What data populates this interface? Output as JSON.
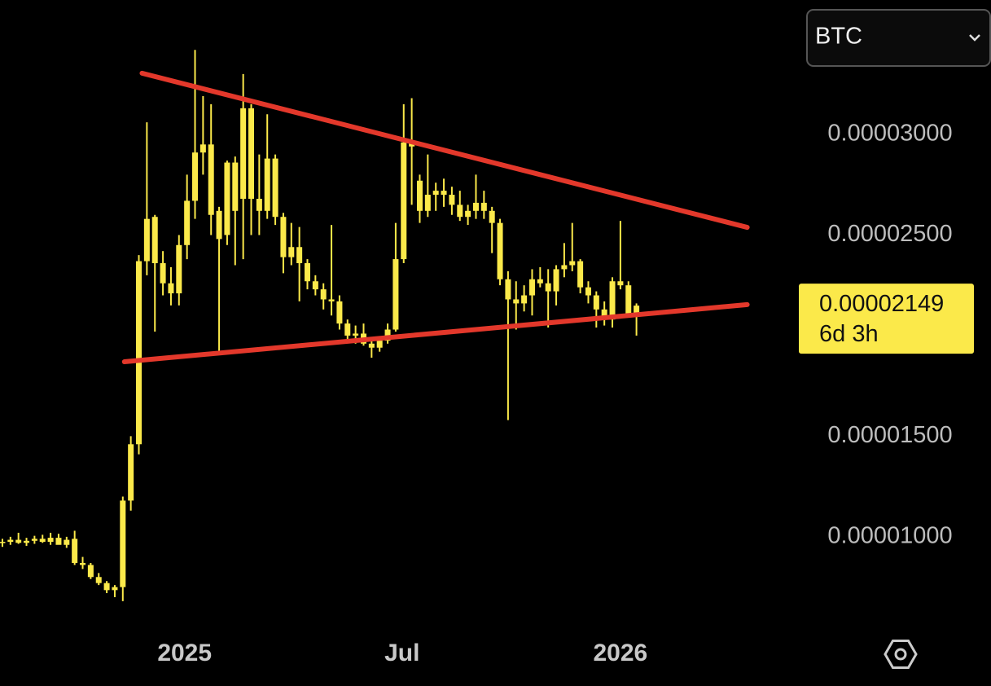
{
  "chart_data": {
    "type": "candlestick",
    "symbol": "BTC",
    "x": [
      0,
      1,
      2,
      3,
      4,
      5,
      6,
      7,
      8,
      9,
      10,
      11,
      12,
      13,
      14,
      15,
      16,
      17,
      18,
      19,
      20,
      21,
      22,
      23,
      24,
      25,
      26,
      27,
      28,
      29,
      30,
      31,
      32,
      33,
      34,
      35,
      36,
      37,
      38,
      39,
      40,
      41,
      42,
      43,
      44,
      45,
      46,
      47,
      48,
      49,
      50,
      51,
      52,
      53,
      54,
      55,
      56,
      57,
      58,
      59,
      60,
      61,
      62,
      63,
      64,
      65,
      66,
      67,
      68,
      69,
      70,
      71,
      72,
      73,
      74,
      75,
      76,
      77,
      78,
      79
    ],
    "open": [
      9.7e-06,
      9.75e-06,
      9.85e-06,
      9.7e-06,
      9.8e-06,
      9.9e-06,
      9.75e-06,
      9.95e-06,
      9.6e-06,
      9.9e-06,
      8.7e-06,
      8.6e-06,
      8e-06,
      7.7e-06,
      7.35e-06,
      7.5e-06,
      1.18e-05,
      1.46e-05,
      2.37e-05,
      2.59e-05,
      2.36e-05,
      2.26e-05,
      2.21e-05,
      2.45e-05,
      2.67e-05,
      2.91e-05,
      2.95e-05,
      2.62e-05,
      2.5e-05,
      2.86e-05,
      2.68e-05,
      3.13e-05,
      2.68e-05,
      2.62e-05,
      2.88e-05,
      2.59e-05,
      2.39e-05,
      2.44e-05,
      2.36e-05,
      2.27e-05,
      2.23e-05,
      2.18e-05,
      2.17e-05,
      2.06e-05,
      2e-05,
      2.01e-05,
      1.96e-05,
      1.94e-05,
      1.975e-05,
      2.03e-05,
      2.38e-05,
      2.96e-05,
      2.77e-05,
      2.62e-05,
      2.7e-05,
      2.72e-05,
      2.7e-05,
      2.65e-05,
      2.59e-05,
      2.62e-05,
      2.66e-05,
      2.62e-05,
      2.56e-05,
      2.28e-05,
      2.18e-05,
      2.16e-05,
      2.2e-05,
      2.28e-05,
      2.26e-05,
      2.22e-05,
      2.33e-05,
      2.35e-05,
      2.37e-05,
      2.24e-05,
      2.2e-05,
      2.13e-05,
      2.08e-05,
      2.27e-05,
      2.25e-05,
      2.11e-05
    ],
    "high": [
      9.9e-06,
      1e-05,
      1.02e-05,
      9.95e-06,
      1.005e-05,
      1.01e-05,
      1.02e-05,
      1.015e-05,
      1e-05,
      1.03e-05,
      9e-06,
      8.7e-06,
      8.2e-06,
      7.8e-06,
      7.6e-06,
      1.2e-05,
      1.5e-05,
      2.4e-05,
      3.06e-05,
      2.6e-05,
      2.42e-05,
      2.34e-05,
      2.5e-05,
      2.8e-05,
      3.42e-05,
      3.19e-05,
      3.15e-05,
      2.64e-05,
      2.87e-05,
      2.89e-05,
      3.3e-05,
      3.15e-05,
      2.9e-05,
      3.1e-05,
      2.9e-05,
      2.61e-05,
      2.56e-05,
      2.54e-05,
      2.38e-05,
      2.3e-05,
      2.26e-05,
      2.55e-05,
      2.2e-05,
      2.08e-05,
      2.05e-05,
      2.06e-05,
      1.98e-05,
      1.99e-05,
      2.06e-05,
      2.56e-05,
      3.15e-05,
      3.18e-05,
      2.8e-05,
      2.9e-05,
      2.76e-05,
      2.78e-05,
      2.74e-05,
      2.72e-05,
      2.65e-05,
      2.8e-05,
      2.72e-05,
      2.64e-05,
      2.58e-05,
      2.32e-05,
      2.27e-05,
      2.25e-05,
      2.33e-05,
      2.34e-05,
      2.33e-05,
      2.35e-05,
      2.46e-05,
      2.56e-05,
      2.38e-05,
      2.27e-05,
      2.22e-05,
      2.17e-05,
      2.29e-05,
      2.57e-05,
      2.27e-05,
      2.16e-05
    ],
    "low": [
      9.5e-06,
      9.6e-06,
      9.65e-06,
      9.55e-06,
      9.65e-06,
      9.7e-06,
      9.6e-06,
      9.65e-06,
      9.45e-06,
      8.6e-06,
      8.4e-06,
      7.9e-06,
      7.6e-06,
      7.2e-06,
      7e-06,
      6.8e-06,
      1.13e-05,
      1.41e-05,
      2.3e-05,
      2.02e-05,
      2.2e-05,
      2.15e-05,
      2.15e-05,
      2.38e-05,
      2.58e-05,
      2.8e-05,
      2.5e-05,
      1.92e-05,
      2.45e-05,
      2.35e-05,
      2.38e-05,
      2.5e-05,
      2.5e-05,
      2.58e-05,
      2.55e-05,
      2.31e-05,
      2.35e-05,
      2.17e-05,
      2.23e-05,
      2.2e-05,
      2.13e-05,
      2.1e-05,
      2.03e-05,
      1.98e-05,
      1.96e-05,
      1.95e-05,
      1.89e-05,
      1.92e-05,
      1.96e-05,
      2.02e-05,
      2.36e-05,
      2.65e-05,
      2.56e-05,
      2.59e-05,
      2.62e-05,
      2.64e-05,
      2.6e-05,
      2.57e-05,
      2.55e-05,
      2.58e-05,
      2.58e-05,
      2.41e-05,
      2.25e-05,
      1.58e-05,
      2.03e-05,
      2.12e-05,
      2.1e-05,
      2.24e-05,
      2.04e-05,
      2.15e-05,
      2.29e-05,
      2.32e-05,
      2.21e-05,
      2.16e-05,
      2.04e-05,
      2.05e-05,
      2.04e-05,
      2.23e-05,
      2.09e-05,
      2e-05
    ],
    "close": [
      9.75e-06,
      9.85e-06,
      9.7e-06,
      9.8e-06,
      9.9e-06,
      9.75e-06,
      9.95e-06,
      9.6e-06,
      9.85e-06,
      8.7e-06,
      8.6e-06,
      8e-06,
      7.7e-06,
      7.35e-06,
      7.5e-06,
      1.18e-05,
      1.46e-05,
      2.37e-05,
      2.58e-05,
      2.36e-05,
      2.26e-05,
      2.21e-05,
      2.45e-05,
      2.67e-05,
      2.91e-05,
      2.95e-05,
      2.6e-05,
      2.48e-05,
      2.86e-05,
      2.62e-05,
      3.13e-05,
      2.68e-05,
      2.62e-05,
      2.88e-05,
      2.59e-05,
      2.39e-05,
      2.44e-05,
      2.36e-05,
      2.27e-05,
      2.23e-05,
      2.18e-05,
      2.17e-05,
      2.06e-05,
      2e-05,
      2.01e-05,
      1.96e-05,
      1.94e-05,
      1.975e-05,
      2.03e-05,
      2.38e-05,
      2.96e-05,
      2.94e-05,
      2.62e-05,
      2.7e-05,
      2.72e-05,
      2.7e-05,
      2.65e-05,
      2.59e-05,
      2.62e-05,
      2.66e-05,
      2.62e-05,
      2.56e-05,
      2.28e-05,
      2.18e-05,
      2.16e-05,
      2.2e-05,
      2.28e-05,
      2.26e-05,
      2.22e-05,
      2.33e-05,
      2.35e-05,
      2.37e-05,
      2.24e-05,
      2.2e-05,
      2.13e-05,
      2.08e-05,
      2.27e-05,
      2.25e-05,
      2.11e-05,
      2.149e-05
    ],
    "color": "#fbe94a",
    "xlim": [
      -0.3,
      97.1
    ],
    "xticks": [
      {
        "value": 22.7,
        "label": "2025"
      },
      {
        "value": 49.8,
        "label": "Jul"
      },
      {
        "value": 77,
        "label": "2026"
      }
    ],
    "ylim": [
      5.5e-06,
      3.668e-05
    ],
    "yticks": [
      {
        "value": 1e-05,
        "label": "0.00001000"
      },
      {
        "value": 1.5e-05,
        "label": "0.00001500"
      },
      {
        "value": 2.5e-05,
        "label": "0.00002500"
      },
      {
        "value": 3e-05,
        "label": "0.00003000"
      }
    ],
    "current_price": {
      "value": 2.149e-05,
      "label": "0.00002149",
      "countdown": "6d 3h"
    },
    "trend_lines": [
      {
        "x": [
          17.4,
          92.8
        ],
        "y": [
          3.304e-05,
          2.538e-05
        ],
        "color": "#e3382b"
      },
      {
        "x": [
          15.2,
          92.8
        ],
        "y": [
          1.87e-05,
          2.154e-05
        ],
        "color": "#e3382b"
      }
    ]
  }
}
